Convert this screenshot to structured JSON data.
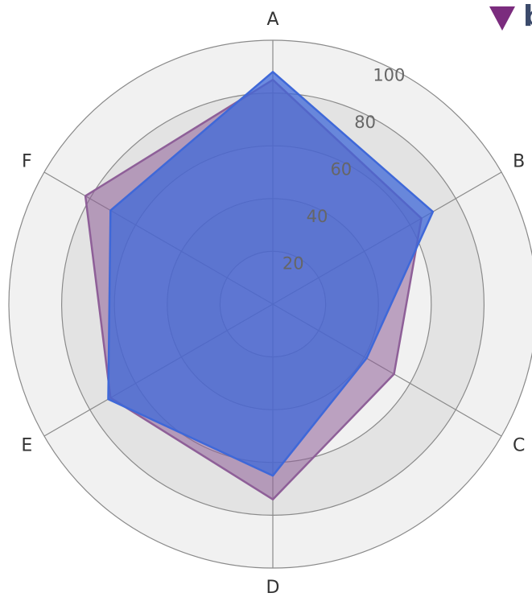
{
  "logo": "b",
  "chart_data": {
    "type": "radar",
    "categories": [
      "A",
      "B",
      "C",
      "D",
      "E",
      "F"
    ],
    "series": [
      {
        "color": "#8e5f98",
        "values": [
          85,
          65,
          53,
          74,
          71,
          82
        ]
      },
      {
        "color": "#3f68d8",
        "values": [
          88,
          70,
          41,
          65,
          72,
          71
        ]
      }
    ],
    "rlim": [
      0,
      100
    ],
    "rticks": [
      20,
      40,
      60,
      80,
      100
    ],
    "grid": true
  }
}
